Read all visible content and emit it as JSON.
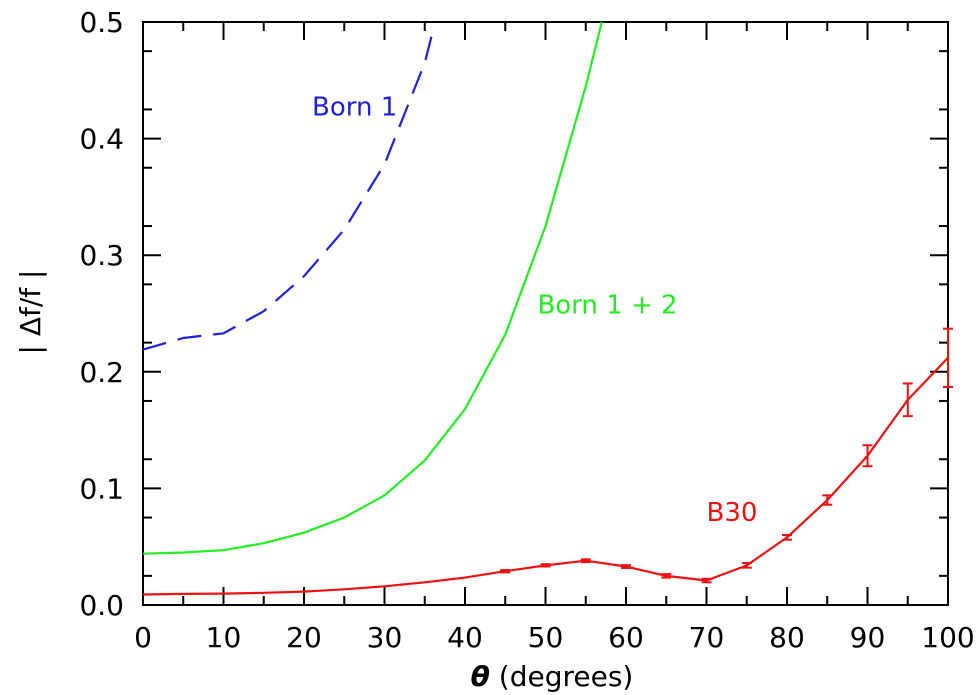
{
  "chart_data": {
    "type": "line",
    "xlabel_symbol": "θ",
    "xlabel_text": " (degrees)",
    "ylabel": "| Δf/f |",
    "xlim": [
      0,
      100
    ],
    "ylim": [
      0,
      0.5
    ],
    "x_ticks": [
      0,
      10,
      20,
      30,
      40,
      50,
      60,
      70,
      80,
      90,
      100
    ],
    "y_ticks": [
      0.0,
      0.1,
      0.2,
      0.3,
      0.4,
      0.5
    ],
    "x_tick_labels": [
      "0",
      "10",
      "20",
      "30",
      "40",
      "50",
      "60",
      "70",
      "80",
      "90",
      "100"
    ],
    "y_tick_labels": [
      "0.0",
      "0.1",
      "0.2",
      "0.3",
      "0.4",
      "0.5"
    ],
    "grid": false,
    "series": [
      {
        "name": "Born 1",
        "color": "#1f1fe0",
        "style": "dashed",
        "x": [
          0,
          5,
          10,
          15,
          20,
          25,
          30,
          35,
          36
        ],
        "y": [
          0.219,
          0.229,
          0.233,
          0.252,
          0.282,
          0.322,
          0.378,
          0.465,
          0.492
        ]
      },
      {
        "name": "Born 1 + 2",
        "color": "#22ee22",
        "style": "solid",
        "x": [
          0,
          5,
          10,
          15,
          20,
          25,
          30,
          35,
          40,
          45,
          50,
          55,
          57
        ],
        "y": [
          0.044,
          0.045,
          0.047,
          0.053,
          0.062,
          0.075,
          0.094,
          0.124,
          0.168,
          0.232,
          0.325,
          0.445,
          0.5
        ]
      },
      {
        "name": "B30",
        "color": "#ee1111",
        "style": "solid",
        "x": [
          0,
          5,
          10,
          15,
          20,
          25,
          30,
          35,
          40,
          45,
          50,
          55,
          60,
          65,
          70,
          75,
          80,
          85,
          90,
          95,
          100
        ],
        "y": [
          0.009,
          0.0095,
          0.0098,
          0.0105,
          0.0115,
          0.0135,
          0.016,
          0.0195,
          0.0235,
          0.029,
          0.034,
          0.038,
          0.033,
          0.025,
          0.021,
          0.034,
          0.058,
          0.09,
          0.128,
          0.176,
          0.212
        ],
        "err": [
          0,
          0,
          0,
          0,
          0,
          0,
          0,
          0,
          0,
          0.001,
          0.001,
          0.0012,
          0.0012,
          0.0015,
          0.0015,
          0.002,
          0.002,
          0.004,
          0.009,
          0.014,
          0.025
        ]
      }
    ],
    "annotations": [
      {
        "text": "Born 1",
        "x": 21,
        "y": 0.42,
        "series": 0
      },
      {
        "text": "Born 1 + 2",
        "x": 49,
        "y": 0.25,
        "series": 1
      },
      {
        "text": "B30",
        "x": 70,
        "y": 0.072,
        "series": 2
      }
    ]
  }
}
